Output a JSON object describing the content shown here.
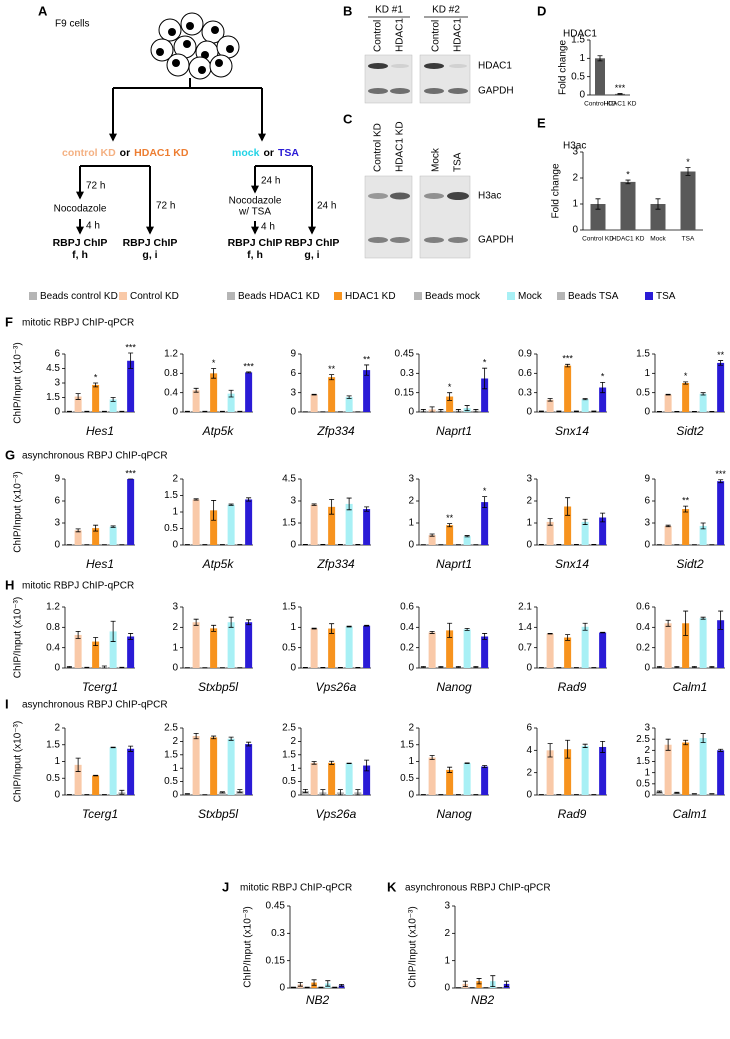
{
  "diagram": {
    "panel": "A",
    "cells": "F9 cells",
    "groups": [
      {
        "option1": "control KD",
        "or": "or",
        "option2": "HDAC1 KD",
        "time1": "72 h",
        "drug": "Nocodazole",
        "time2": "4 h",
        "chip1": "RBPJ ChIP",
        "panels1": "f, h",
        "time3": "72 h",
        "chip2": "RBPJ ChIP",
        "panels2": "g, i"
      },
      {
        "option1": "mock",
        "or": "or",
        "option2": "TSA",
        "time1": "24 h",
        "drug": "Nocodazole",
        "drug2": "w/ TSA",
        "time2": "4 h",
        "chip1": "RBPJ ChIP",
        "panels1": "f, h",
        "time3": "24 h",
        "chip2": "RBPJ ChIP",
        "panels2": "g, i"
      }
    ]
  },
  "blots": [
    {
      "panel": "B",
      "groups": [
        {
          "label": "KD #1",
          "lanes": [
            "Control",
            "HDAC1"
          ]
        },
        {
          "label": "KD #2",
          "lanes": [
            "Control",
            "HDAC1"
          ]
        }
      ],
      "proteins": [
        "HDAC1",
        "GAPDH"
      ]
    },
    {
      "panel": "C",
      "groups": [
        {
          "lanes": [
            "Control KD",
            "HDAC1 KD"
          ]
        },
        {
          "lanes": [
            "Mock",
            "TSA"
          ]
        }
      ],
      "proteins": [
        "H3ac",
        "GAPDH"
      ]
    }
  ],
  "legend": [
    {
      "name": "Beads control KD",
      "color": "#b5b5b5"
    },
    {
      "name": "Control KD",
      "color": "#f9c9a8"
    },
    {
      "name": "Beads HDAC1 KD",
      "color": "#b5b5b5"
    },
    {
      "name": "HDAC1 KD",
      "color": "#f7931e"
    },
    {
      "name": "Beads mock",
      "color": "#b5b5b5"
    },
    {
      "name": "Mock",
      "color": "#a8f0f5"
    },
    {
      "name": "Beads TSA",
      "color": "#b5b5b5"
    },
    {
      "name": "TSA",
      "color": "#2a1bd6"
    }
  ],
  "rows": [
    {
      "panel": "F",
      "title": "mitotic RBPJ ChIP-qPCR",
      "ylabel": "ChIP/Input (x10⁻³)"
    },
    {
      "panel": "G",
      "title": "asynchronous RBPJ ChIP-qPCR",
      "ylabel": "ChIP/Input (x10⁻³)"
    },
    {
      "panel": "H",
      "title": "mitotic RBPJ ChIP-qPCR",
      "ylabel": "ChIP/Input (x10⁻³)"
    },
    {
      "panel": "I",
      "title": "asynchronous RBPJ ChIP-qPCR",
      "ylabel": "ChIP/Input (x10⁻³)"
    },
    {
      "panel": "J",
      "title": "mitotic RBPJ ChIP-qPCR",
      "ylabel": "ChIP/Input (x10⁻³)"
    },
    {
      "panel": "K",
      "title": "asynchronous RBPJ ChIP-qPCR",
      "ylabel": "ChIP/Input (x10⁻³)"
    }
  ],
  "chart_data": [
    {
      "type": "bar",
      "panel": "D",
      "title": "HDAC1",
      "ylabel": "Fold change",
      "categories": [
        "Control KD",
        "HDAC1 KD"
      ],
      "values": [
        1,
        0.03
      ],
      "errors": [
        0.07,
        0.01
      ],
      "stars": [
        null,
        "***"
      ],
      "color": "#595959",
      "ylim": [
        0,
        1.5
      ],
      "yticks": [
        0,
        0.5,
        1,
        1.5
      ]
    },
    {
      "type": "bar",
      "panel": "E",
      "title": "H3ac",
      "ylabel": "Fold change",
      "categories": [
        "Control KD",
        "HDAC1 KD",
        "Mock",
        "TSA"
      ],
      "values": [
        1,
        1.85,
        1,
        2.25
      ],
      "errors": [
        0.2,
        0.07,
        0.2,
        0.15
      ],
      "stars": [
        null,
        "*",
        null,
        "*"
      ],
      "color": "#595959",
      "ylim": [
        0,
        3
      ],
      "yticks": [
        0,
        1,
        2,
        3
      ]
    },
    {
      "type": "bar",
      "xlabel": "Hes1",
      "values": [
        0.05,
        1.6,
        0.05,
        2.8,
        0.05,
        1.3,
        0.05,
        5.3
      ],
      "errors": [
        0.02,
        0.3,
        0.02,
        0.2,
        0.02,
        0.2,
        0.02,
        0.8
      ],
      "stars": [
        null,
        null,
        null,
        "*",
        null,
        null,
        null,
        "***"
      ],
      "ylim": [
        0,
        6
      ],
      "yticks": [
        0,
        1.5,
        3,
        4.5,
        6
      ]
    },
    {
      "type": "bar",
      "xlabel": "Atp5k",
      "values": [
        0.01,
        0.45,
        0.01,
        0.8,
        0.01,
        0.38,
        0.01,
        0.82
      ],
      "errors": [
        0.005,
        0.04,
        0.005,
        0.1,
        0.005,
        0.07,
        0.005,
        0.01
      ],
      "stars": [
        null,
        null,
        null,
        "*",
        null,
        null,
        null,
        "***"
      ],
      "ylim": [
        0,
        1.2
      ],
      "yticks": [
        0,
        0.4,
        0.8,
        1.2
      ]
    },
    {
      "type": "bar",
      "xlabel": "Zfp334",
      "values": [
        0.03,
        2.7,
        0.03,
        5.4,
        0.03,
        2.3,
        0.03,
        6.5
      ],
      "errors": [
        0.01,
        0.05,
        0.01,
        0.4,
        0.01,
        0.2,
        0.01,
        0.8
      ],
      "stars": [
        null,
        null,
        null,
        "**",
        null,
        null,
        null,
        "**"
      ],
      "ylim": [
        0,
        9
      ],
      "yticks": [
        0,
        3,
        6,
        9
      ]
    },
    {
      "type": "bar",
      "xlabel": "Naprt1",
      "values": [
        0.01,
        0.02,
        0.01,
        0.12,
        0.01,
        0.03,
        0.01,
        0.26
      ],
      "errors": [
        0.01,
        0.02,
        0.01,
        0.03,
        0.01,
        0.02,
        0.01,
        0.08
      ],
      "stars": [
        null,
        null,
        null,
        "*",
        null,
        null,
        null,
        "*"
      ],
      "ylim": [
        0,
        0.45
      ],
      "yticks": [
        0,
        0.15,
        0.3,
        0.45
      ]
    },
    {
      "type": "bar",
      "xlabel": "Snx14",
      "values": [
        0.01,
        0.19,
        0.01,
        0.72,
        0.01,
        0.2,
        0.01,
        0.38
      ],
      "errors": [
        0.005,
        0.02,
        0.005,
        0.02,
        0.005,
        0.01,
        0.005,
        0.08
      ],
      "stars": [
        null,
        null,
        null,
        "***",
        null,
        null,
        null,
        "*"
      ],
      "ylim": [
        0,
        0.9
      ],
      "yticks": [
        0,
        0.3,
        0.6,
        0.9
      ]
    },
    {
      "type": "bar",
      "xlabel": "Sidt2",
      "values": [
        0.01,
        0.45,
        0.01,
        0.75,
        0.01,
        0.47,
        0.01,
        1.27
      ],
      "errors": [
        0.005,
        0.01,
        0.005,
        0.03,
        0.005,
        0.03,
        0.005,
        0.06
      ],
      "stars": [
        null,
        null,
        null,
        "*",
        null,
        null,
        null,
        "**"
      ],
      "ylim": [
        0,
        1.5
      ],
      "yticks": [
        0,
        0.5,
        1,
        1.5
      ]
    },
    {
      "type": "bar",
      "xlabel": "Hes1",
      "values": [
        0.03,
        2,
        0.03,
        2.3,
        0.03,
        2.5,
        0.03,
        9
      ],
      "errors": [
        0.01,
        0.2,
        0.01,
        0.4,
        0.01,
        0.1,
        0.01,
        0
      ],
      "stars": [
        null,
        null,
        null,
        null,
        null,
        null,
        null,
        "***"
      ],
      "ylim": [
        0,
        9
      ],
      "yticks": [
        0,
        3,
        6,
        9
      ]
    },
    {
      "type": "bar",
      "xlabel": "Atp5k",
      "values": [
        0.01,
        1.38,
        0.01,
        1.05,
        0.01,
        1.22,
        0.01,
        1.38
      ],
      "errors": [
        0.005,
        0.02,
        0.005,
        0.3,
        0.005,
        0.02,
        0.005,
        0.05
      ],
      "ylim": [
        0,
        2
      ],
      "yticks": [
        0,
        0.5,
        1,
        1.5,
        2
      ]
    },
    {
      "type": "bar",
      "xlabel": "Zfp334",
      "values": [
        0.03,
        2.75,
        0.03,
        2.6,
        0.03,
        2.8,
        0.03,
        2.45
      ],
      "errors": [
        0.01,
        0.05,
        0.01,
        0.5,
        0.01,
        0.4,
        0.01,
        0.15
      ],
      "ylim": [
        0,
        4.5
      ],
      "yticks": [
        0,
        1.5,
        3,
        4.5
      ]
    },
    {
      "type": "bar",
      "xlabel": "Naprt1",
      "values": [
        0.01,
        0.45,
        0.01,
        0.9,
        0.01,
        0.4,
        0.01,
        1.95
      ],
      "errors": [
        0.005,
        0.05,
        0.005,
        0.07,
        0.005,
        0.03,
        0.005,
        0.25
      ],
      "stars": [
        null,
        null,
        null,
        "**",
        null,
        null,
        null,
        "*"
      ],
      "ylim": [
        0,
        3
      ],
      "yticks": [
        0,
        1,
        2,
        3
      ]
    },
    {
      "type": "bar",
      "xlabel": "Snx14",
      "values": [
        0.02,
        1.05,
        0.02,
        1.75,
        0.02,
        1.05,
        0.02,
        1.25
      ],
      "errors": [
        0.01,
        0.15,
        0.01,
        0.4,
        0.01,
        0.12,
        0.01,
        0.2
      ],
      "ylim": [
        0,
        3
      ],
      "yticks": [
        0,
        1,
        2,
        3
      ]
    },
    {
      "type": "bar",
      "xlabel": "Sidt2",
      "values": [
        0.03,
        2.6,
        0.03,
        4.9,
        0.03,
        2.6,
        0.03,
        8.7
      ],
      "errors": [
        0.01,
        0.1,
        0.01,
        0.4,
        0.01,
        0.4,
        0.01,
        0.2
      ],
      "stars": [
        null,
        null,
        null,
        "**",
        null,
        null,
        null,
        "***"
      ],
      "ylim": [
        0,
        9
      ],
      "yticks": [
        0,
        3,
        6,
        9
      ]
    },
    {
      "type": "bar",
      "xlabel": "Tcerg1",
      "values": [
        0.02,
        0.65,
        0.01,
        0.52,
        0.01,
        0.72,
        0.01,
        0.62
      ],
      "errors": [
        0.01,
        0.07,
        0.005,
        0.08,
        0.03,
        0.2,
        0.005,
        0.06
      ],
      "ylim": [
        0,
        1.2
      ],
      "yticks": [
        0,
        0.4,
        0.8,
        1.2
      ]
    },
    {
      "type": "bar",
      "xlabel": "Stxbp5l",
      "values": [
        0.01,
        2.25,
        0.01,
        1.95,
        0.01,
        2.25,
        0.01,
        2.25
      ],
      "errors": [
        0.005,
        0.15,
        0.005,
        0.15,
        0.005,
        0.25,
        0.005,
        0.12
      ],
      "ylim": [
        0,
        3
      ],
      "yticks": [
        0,
        1,
        2,
        3
      ]
    },
    {
      "type": "bar",
      "xlabel": "Vps26a",
      "values": [
        0.01,
        0.97,
        0.01,
        0.97,
        0.01,
        1.02,
        0.01,
        1.04
      ],
      "errors": [
        0.005,
        0.01,
        0.005,
        0.12,
        0.005,
        0.01,
        0.005,
        0.01
      ],
      "ylim": [
        0,
        1.5
      ],
      "yticks": [
        0,
        0.5,
        1,
        1.5
      ]
    },
    {
      "type": "bar",
      "xlabel": "Nanog",
      "values": [
        0.01,
        0.35,
        0.01,
        0.37,
        0.01,
        0.38,
        0.01,
        0.31
      ],
      "errors": [
        0.005,
        0.01,
        0.005,
        0.07,
        0.005,
        0.01,
        0.005,
        0.03
      ],
      "ylim": [
        0,
        0.6
      ],
      "yticks": [
        0,
        0.2,
        0.4,
        0.6
      ]
    },
    {
      "type": "bar",
      "xlabel": "Rad9",
      "values": [
        0.01,
        1.18,
        0.01,
        1.05,
        0.01,
        1.42,
        0.01,
        1.22
      ],
      "errors": [
        0.005,
        0.01,
        0.005,
        0.1,
        0.005,
        0.12,
        0.005,
        0.01
      ],
      "ylim": [
        0,
        2.1
      ],
      "yticks": [
        0,
        0.7,
        1.4,
        2.1
      ]
    },
    {
      "type": "bar",
      "xlabel": "Calm1",
      "values": [
        0.01,
        0.44,
        0.01,
        0.44,
        0.01,
        0.49,
        0.01,
        0.47
      ],
      "errors": [
        0.005,
        0.03,
        0.005,
        0.12,
        0.005,
        0.01,
        0.005,
        0.09
      ],
      "ylim": [
        0,
        0.6
      ],
      "yticks": [
        0,
        0.2,
        0.4,
        0.6
      ]
    },
    {
      "type": "bar",
      "xlabel": "Tcerg1",
      "values": [
        0.01,
        0.9,
        0.01,
        0.58,
        0.01,
        1.42,
        0.08,
        1.38
      ],
      "errors": [
        0.005,
        0.2,
        0.005,
        0.01,
        0.005,
        0.01,
        0.06,
        0.08
      ],
      "ylim": [
        0,
        2
      ],
      "yticks": [
        0,
        0.5,
        1,
        1.5,
        2
      ]
    },
    {
      "type": "bar",
      "xlabel": "Stxbp5l",
      "values": [
        0.04,
        2.2,
        0.01,
        2.15,
        0.1,
        2.1,
        0.15,
        1.9
      ],
      "errors": [
        0.01,
        0.1,
        0.005,
        0.05,
        0.02,
        0.06,
        0.05,
        0.07
      ],
      "ylim": [
        0,
        2.5
      ],
      "yticks": [
        0,
        0.5,
        1,
        1.5,
        2,
        2.5
      ]
    },
    {
      "type": "bar",
      "xlabel": "Vps26a",
      "values": [
        0.15,
        1.2,
        0.1,
        1.2,
        0.1,
        1.18,
        0.1,
        1.1
      ],
      "errors": [
        0.06,
        0.05,
        0.1,
        0.06,
        0.1,
        0.01,
        0.1,
        0.2
      ],
      "ylim": [
        0,
        2.5
      ],
      "yticks": [
        0,
        0.5,
        1,
        1.5,
        2,
        2.5
      ]
    },
    {
      "type": "bar",
      "xlabel": "Nanog",
      "values": [
        0.01,
        1.12,
        0.01,
        0.75,
        0.01,
        0.95,
        0.01,
        0.85
      ],
      "errors": [
        0.005,
        0.06,
        0.005,
        0.08,
        0.005,
        0.01,
        0.005,
        0.03
      ],
      "ylim": [
        0,
        2
      ],
      "yticks": [
        0,
        0.5,
        1,
        1.5,
        2
      ]
    },
    {
      "type": "bar",
      "xlabel": "Rad9",
      "values": [
        0.03,
        4,
        0.03,
        4.1,
        0.03,
        4.4,
        0.03,
        4.3
      ],
      "errors": [
        0.01,
        0.6,
        0.01,
        0.8,
        0.01,
        0.15,
        0.01,
        0.5
      ],
      "ylim": [
        0,
        6
      ],
      "yticks": [
        0,
        2,
        4,
        6
      ]
    },
    {
      "type": "bar",
      "xlabel": "Calm1",
      "values": [
        0.15,
        2.25,
        0.1,
        2.35,
        0.05,
        2.55,
        0.05,
        2
      ],
      "errors": [
        0.03,
        0.25,
        0.02,
        0.1,
        0.01,
        0.2,
        0.01,
        0.05
      ],
      "ylim": [
        0,
        3
      ],
      "yticks": [
        0,
        0.5,
        1,
        1.5,
        2,
        2.5,
        3
      ]
    },
    {
      "type": "bar",
      "xlabel": "NB2",
      "values": [
        0.003,
        0.02,
        0.003,
        0.03,
        0.003,
        0.025,
        0.003,
        0.015
      ],
      "errors": [
        0.002,
        0.01,
        0.002,
        0.015,
        0.002,
        0.015,
        0.002,
        0.005
      ],
      "ylim": [
        0,
        0.45
      ],
      "yticks": [
        0,
        0.15,
        0.3,
        0.45
      ]
    },
    {
      "type": "bar",
      "xlabel": "NB2",
      "values": [
        0.01,
        0.15,
        0.01,
        0.25,
        0.01,
        0.25,
        0.01,
        0.15
      ],
      "errors": [
        0.005,
        0.1,
        0.005,
        0.1,
        0.005,
        0.2,
        0.005,
        0.1
      ],
      "ylim": [
        0,
        3
      ],
      "yticks": [
        0,
        1,
        2,
        3
      ]
    }
  ]
}
